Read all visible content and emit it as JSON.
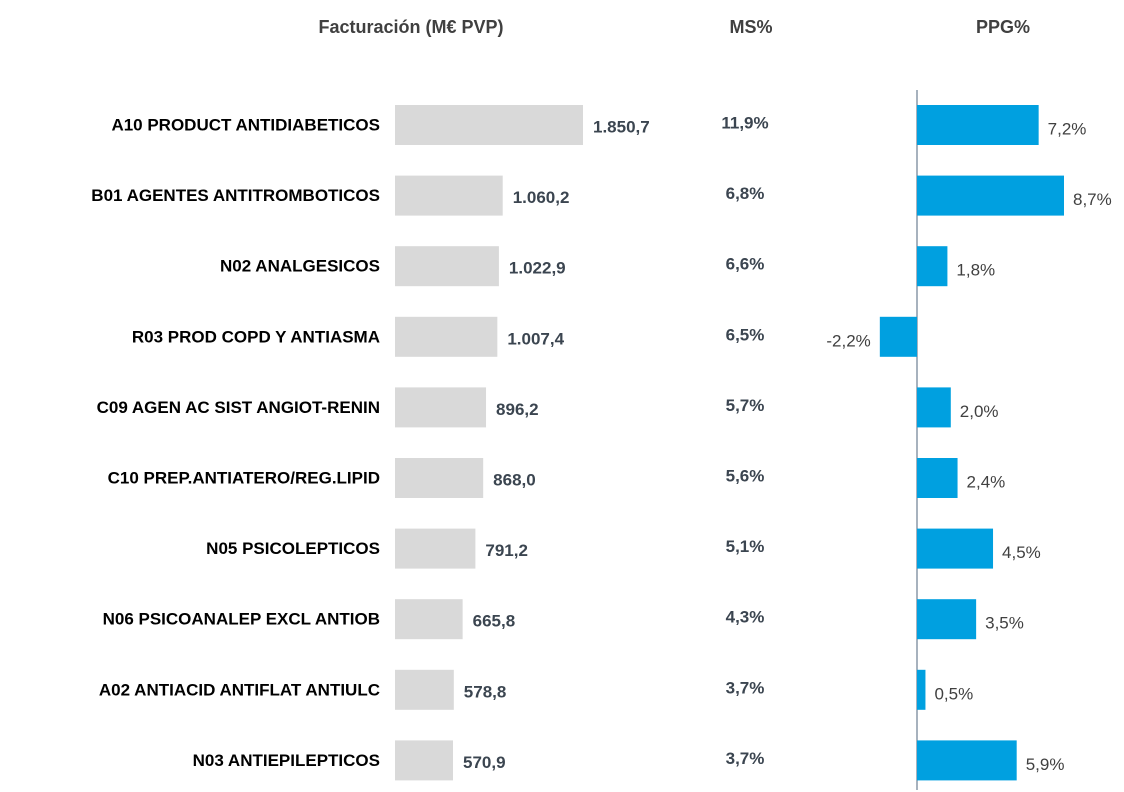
{
  "chart_data": [
    {
      "type": "bar",
      "title": "Facturación (M€ PVP)",
      "color": "#d9d9d9",
      "categories": [
        "A10 PRODUCT ANTIDIABETICOS",
        "B01 AGENTES ANTITROMBOTICOS",
        "N02 ANALGESICOS",
        "R03 PROD COPD Y ANTIASMA",
        "C09 AGEN AC SIST ANGIOT-RENIN",
        "C10 PREP.ANTIATERO/REG.LIPID",
        "N05 PSICOLEPTICOS",
        "N06 PSICOANALEP EXCL ANTIOB",
        "A02 ANTIACID ANTIFLAT ANTIULC",
        "N03 ANTIEPILEPTICOS"
      ],
      "values": [
        1850.7,
        1060.2,
        1022.9,
        1007.4,
        896.2,
        868.0,
        791.2,
        665.8,
        578.8,
        570.9
      ],
      "value_labels": [
        "1.850,7",
        "1.060,2",
        "1.022,9",
        "1.007,4",
        "896,2",
        "868,0",
        "791,2",
        "665,8",
        "578,8",
        "570,9"
      ]
    },
    {
      "type": "text",
      "title": "MS%",
      "values": [
        11.9,
        6.8,
        6.6,
        6.5,
        5.7,
        5.6,
        5.1,
        4.3,
        3.7,
        3.7
      ],
      "value_labels": [
        "11,9%",
        "6,8%",
        "6,6%",
        "6,5%",
        "5,7%",
        "5,6%",
        "5,1%",
        "4,3%",
        "3,7%",
        "3,7%"
      ]
    },
    {
      "type": "bar",
      "title": "PPG%",
      "color": "#00a0e0",
      "values": [
        7.2,
        8.7,
        1.8,
        -2.2,
        2.0,
        2.4,
        4.5,
        3.5,
        0.5,
        5.9
      ],
      "value_labels": [
        "7,2%",
        "8,7%",
        "1,8%",
        "-2,2%",
        "2,0%",
        "2,4%",
        "4,5%",
        "3,5%",
        "0,5%",
        "5,9%"
      ]
    }
  ]
}
